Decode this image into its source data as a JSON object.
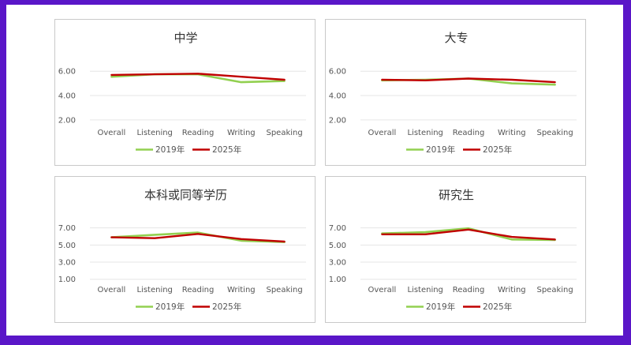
{
  "chart_data": [
    {
      "type": "line",
      "title": "中学",
      "categories": [
        "Overall",
        "Listening",
        "Reading",
        "Writing",
        "Speaking"
      ],
      "yticks": [
        "2.00",
        "4.00",
        "6.00"
      ],
      "ylim": [
        1.6,
        6.6
      ],
      "grid": true,
      "legend": "bottom",
      "series": [
        {
          "name": "2019年",
          "color": "#92d050",
          "values": [
            5.55,
            5.75,
            5.75,
            5.1,
            5.2
          ]
        },
        {
          "name": "2025年",
          "color": "#c00000",
          "values": [
            5.7,
            5.75,
            5.8,
            5.55,
            5.3
          ]
        }
      ]
    },
    {
      "type": "line",
      "title": "大专",
      "categories": [
        "Overall",
        "Listening",
        "Reading",
        "Writing",
        "Speaking"
      ],
      "yticks": [
        "2.00",
        "4.00",
        "6.00"
      ],
      "ylim": [
        1.6,
        6.6
      ],
      "grid": true,
      "legend": "bottom",
      "series": [
        {
          "name": "2019年",
          "color": "#92d050",
          "values": [
            5.25,
            5.3,
            5.4,
            5.0,
            4.9
          ]
        },
        {
          "name": "2025年",
          "color": "#c00000",
          "values": [
            5.3,
            5.25,
            5.4,
            5.3,
            5.1
          ]
        }
      ]
    },
    {
      "type": "line",
      "title": "本科或同等学历",
      "categories": [
        "Overall",
        "Listening",
        "Reading",
        "Writing",
        "Speaking"
      ],
      "yticks": [
        "1.00",
        "3.00",
        "5.00",
        "7.00"
      ],
      "ylim": [
        0.7,
        7.8
      ],
      "grid": true,
      "legend": "bottom",
      "series": [
        {
          "name": "2019年",
          "color": "#92d050",
          "values": [
            5.9,
            6.2,
            6.45,
            5.5,
            5.35
          ]
        },
        {
          "name": "2025年",
          "color": "#c00000",
          "values": [
            5.9,
            5.8,
            6.3,
            5.7,
            5.4
          ]
        }
      ]
    },
    {
      "type": "line",
      "title": "研究生",
      "categories": [
        "Overall",
        "Listening",
        "Reading",
        "Writing",
        "Speaking"
      ],
      "yticks": [
        "1.00",
        "3.00",
        "5.00",
        "7.00"
      ],
      "ylim": [
        0.7,
        7.8
      ],
      "grid": true,
      "legend": "bottom",
      "series": [
        {
          "name": "2019年",
          "color": "#92d050",
          "values": [
            6.35,
            6.5,
            6.95,
            5.65,
            5.6
          ]
        },
        {
          "name": "2025年",
          "color": "#c00000",
          "values": [
            6.25,
            6.25,
            6.8,
            5.95,
            5.65
          ]
        }
      ]
    }
  ]
}
